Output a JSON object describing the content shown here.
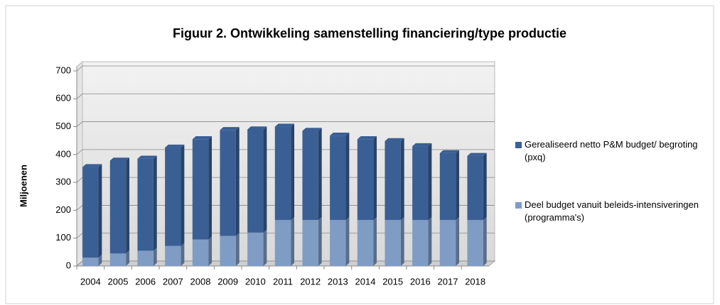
{
  "chart_data": {
    "type": "bar",
    "title": "Figuur 2. Ontwikkeling samenstelling financiering/type productie",
    "y_label": "Miljoenen",
    "categories": [
      "2004",
      "2005",
      "2006",
      "2007",
      "2008",
      "2009",
      "2010",
      "2011",
      "2012",
      "2013",
      "2014",
      "2015",
      "2016",
      "2017",
      "2018"
    ],
    "series": [
      {
        "name": "Gerealiseerd netto P&M budget/ begroting (pxq)",
        "color": "#3a5f94",
        "values": [
          325,
          333,
          330,
          353,
          360,
          380,
          370,
          335,
          320,
          303,
          290,
          283,
          265,
          240,
          230
        ]
      },
      {
        "name": "Deel budget vanuit beleids-intensiveringen (programma's)",
        "color": "#7f9cc4",
        "values": [
          30,
          45,
          55,
          72,
          95,
          108,
          120,
          165,
          165,
          165,
          165,
          165,
          165,
          165,
          165
        ]
      }
    ],
    "stacked": true,
    "ylim": [
      0,
      700
    ],
    "yticks": [
      0,
      100,
      200,
      300,
      400,
      500,
      600,
      700
    ],
    "grid": true
  }
}
